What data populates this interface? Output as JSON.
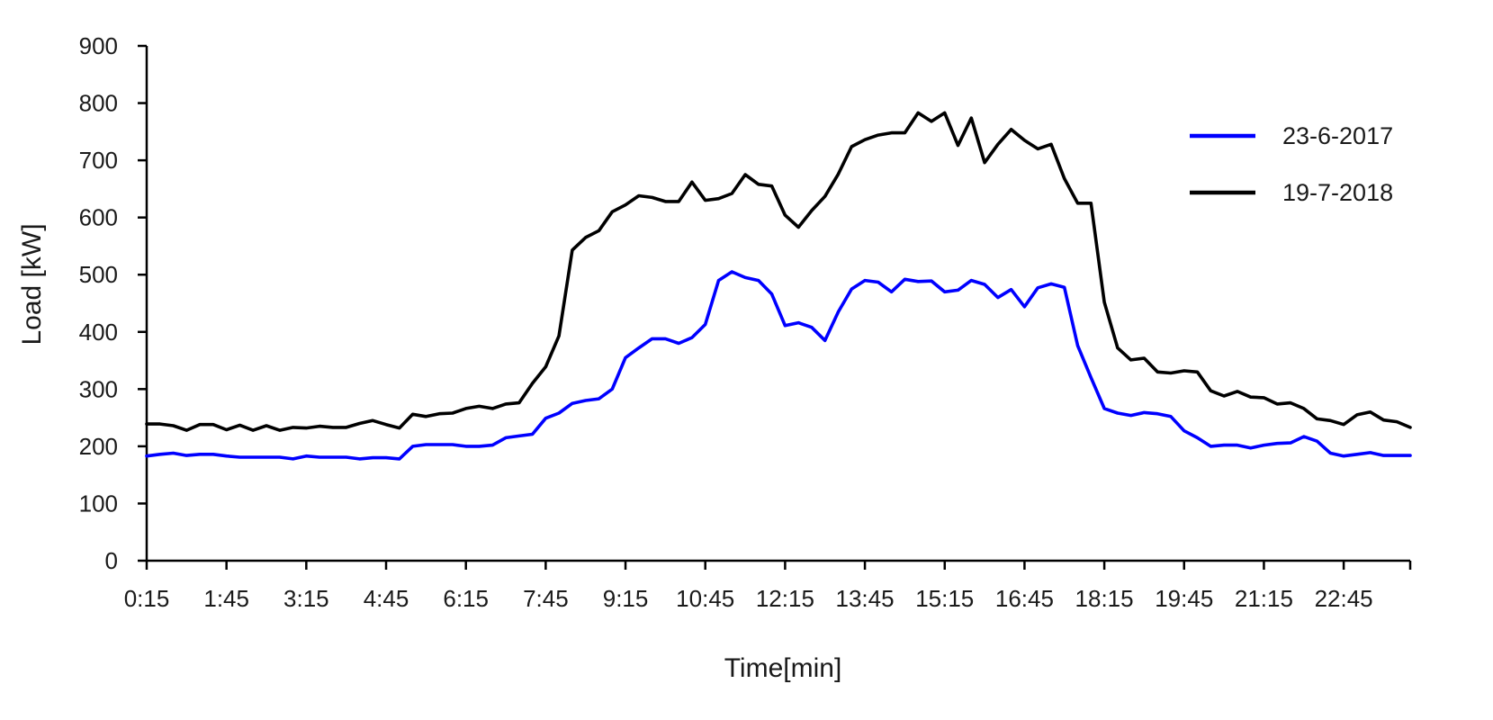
{
  "chart_data": {
    "type": "line",
    "title": "",
    "xlabel": "Time[min]",
    "ylabel": "Load [kW]",
    "ylim": [
      0,
      900
    ],
    "yticks": [
      "0",
      "100",
      "200",
      "300",
      "400",
      "500",
      "600",
      "700",
      "800",
      "900"
    ],
    "xticks": [
      "0:15",
      "1:45",
      "3:15",
      "4:45",
      "6:15",
      "7:45",
      "9:15",
      "10:45",
      "12:15",
      "13:45",
      "15:15",
      "16:45",
      "18:15",
      "19:45",
      "21:15",
      "22:45"
    ],
    "x": [
      "0:15",
      "0:30",
      "0:45",
      "1:00",
      "1:15",
      "1:30",
      "1:45",
      "2:00",
      "2:15",
      "2:30",
      "2:45",
      "3:00",
      "3:15",
      "3:30",
      "3:45",
      "4:00",
      "4:15",
      "4:30",
      "4:45",
      "5:00",
      "5:15",
      "5:30",
      "5:45",
      "6:00",
      "6:15",
      "6:30",
      "6:45",
      "7:00",
      "7:15",
      "7:30",
      "7:45",
      "8:00",
      "8:15",
      "8:30",
      "8:45",
      "9:00",
      "9:15",
      "9:30",
      "9:45",
      "10:00",
      "10:15",
      "10:30",
      "10:45",
      "11:00",
      "11:15",
      "11:30",
      "11:45",
      "12:00",
      "12:15",
      "12:30",
      "12:45",
      "13:00",
      "13:15",
      "13:30",
      "13:45",
      "14:00",
      "14:15",
      "14:30",
      "14:45",
      "15:00",
      "15:15",
      "15:30",
      "15:45",
      "16:00",
      "16:15",
      "16:30",
      "16:45",
      "17:00",
      "17:15",
      "17:30",
      "17:45",
      "18:00",
      "18:15",
      "18:30",
      "18:45",
      "19:00",
      "19:15",
      "19:30",
      "19:45",
      "20:00",
      "20:15",
      "20:30",
      "20:45",
      "21:00",
      "21:15",
      "21:30",
      "21:45",
      "22:00",
      "22:15",
      "22:30",
      "22:45",
      "23:00",
      "23:15",
      "23:30",
      "23:45",
      "24:00"
    ],
    "grid": false,
    "legend_position": "top-right",
    "series": [
      {
        "name": "23-6-2017",
        "color": "#0000ff",
        "values": [
          183,
          186,
          188,
          184,
          186,
          186,
          183,
          181,
          181,
          181,
          181,
          178,
          183,
          181,
          181,
          181,
          178,
          180,
          180,
          178,
          200,
          203,
          203,
          203,
          200,
          200,
          202,
          215,
          218,
          221,
          249,
          258,
          275,
          280,
          283,
          300,
          355,
          372,
          388,
          388,
          380,
          390,
          413,
          490,
          505,
          495,
          490,
          466,
          411,
          416,
          408,
          385,
          435,
          475,
          490,
          487,
          470,
          492,
          488,
          489,
          470,
          473,
          490,
          483,
          460,
          474,
          444,
          477,
          484,
          478,
          376,
          320,
          266,
          258,
          254,
          259,
          257,
          252,
          227,
          215,
          200,
          202,
          202,
          197,
          202,
          205,
          206,
          217,
          209,
          188,
          183,
          186,
          189,
          184,
          184,
          184
        ]
      },
      {
        "name": "19-7-2018",
        "color": "#000000",
        "values": [
          239,
          239,
          236,
          228,
          238,
          238,
          229,
          237,
          228,
          236,
          228,
          233,
          232,
          235,
          233,
          233,
          240,
          245,
          238,
          232,
          256,
          252,
          257,
          258,
          266,
          270,
          266,
          274,
          276,
          310,
          339,
          393,
          543,
          565,
          577,
          610,
          622,
          638,
          635,
          628,
          628,
          662,
          630,
          633,
          642,
          675,
          658,
          655,
          604,
          583,
          612,
          637,
          676,
          724,
          736,
          744,
          748,
          748,
          783,
          768,
          783,
          726,
          774,
          696,
          728,
          754,
          735,
          720,
          728,
          668,
          625,
          625,
          452,
          372,
          351,
          354,
          330,
          328,
          332,
          330,
          297,
          288,
          296,
          286,
          285,
          274,
          276,
          266,
          248,
          245,
          238,
          255,
          260,
          246,
          243,
          233
        ]
      }
    ]
  }
}
